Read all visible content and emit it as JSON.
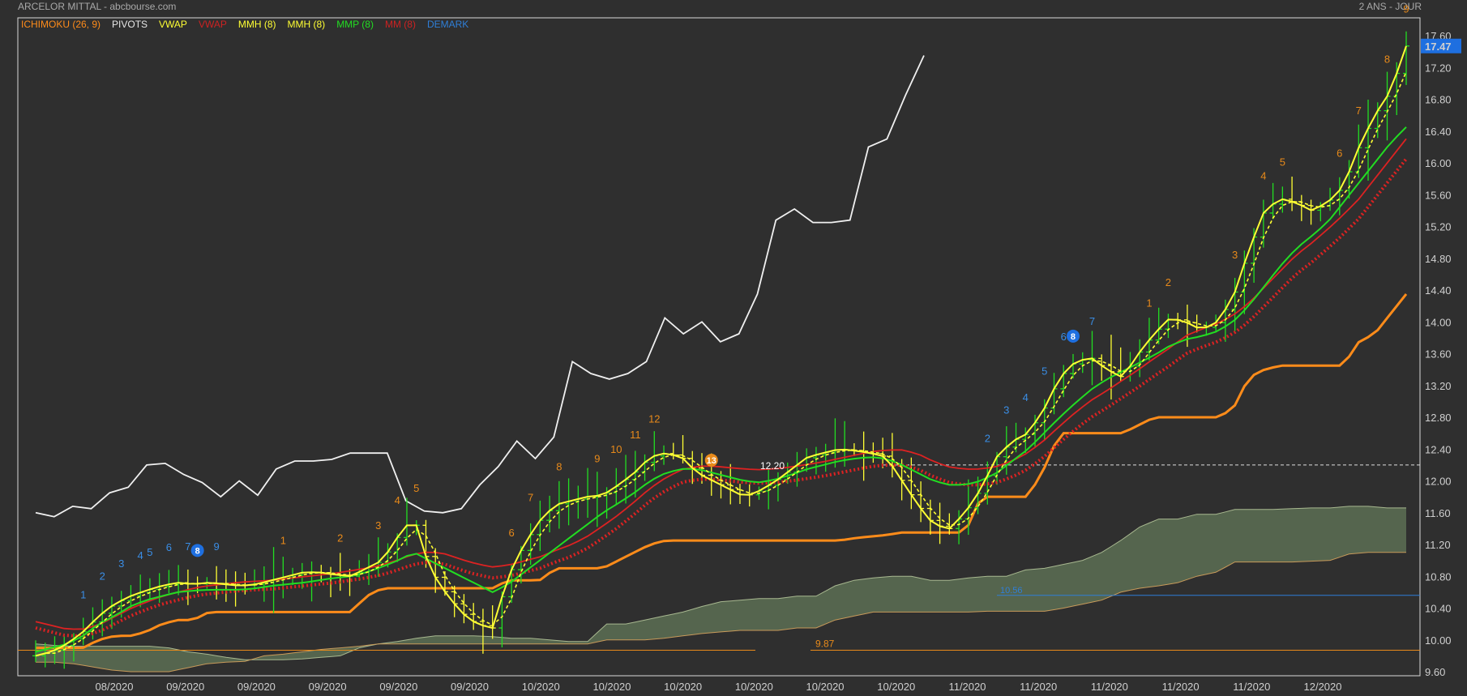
{
  "header": {
    "instrument": "ARCELOR MITTAL - abcbourse.com",
    "period": "2 ANS - JOUR"
  },
  "legend": [
    {
      "label": "ICHIMOKU (26, 9)",
      "color": "#ff8c1a"
    },
    {
      "label": "PIVOTS",
      "color": "#e6e6e6"
    },
    {
      "label": "VWAP",
      "color": "#ffff33"
    },
    {
      "label": "VWAP",
      "color": "#cc2222"
    },
    {
      "label": "MMH (8)",
      "color": "#ffff33"
    },
    {
      "label": "MMH (8)",
      "color": "#ffff33"
    },
    {
      "label": "MMP (8)",
      "color": "#22dd22"
    },
    {
      "label": "MM (8)",
      "color": "#cc2222"
    },
    {
      "label": "DEMARK",
      "color": "#2f7fd8"
    }
  ],
  "chart_data": {
    "type": "line",
    "ylim": [
      9.6,
      17.6
    ],
    "yticks": [
      "9.60",
      "10.00",
      "10.40",
      "10.80",
      "11.20",
      "11.60",
      "12.00",
      "12.40",
      "12.80",
      "13.20",
      "13.60",
      "14.00",
      "14.40",
      "14.80",
      "15.20",
      "15.60",
      "16.00",
      "16.40",
      "16.80",
      "17.20",
      "17.60"
    ],
    "last_price": "17.47",
    "xticks": [
      "08/2020",
      "09/2020",
      "09/2020",
      "09/2020",
      "09/2020",
      "09/2020",
      "10/2020",
      "10/2020",
      "10/2020",
      "10/2020",
      "10/2020",
      "10/2020",
      "11/2020",
      "11/2020",
      "11/2020",
      "11/2020",
      "11/2020",
      "12/2020"
    ],
    "annotations": {
      "price_label": "12.20",
      "low_label": "9.87",
      "blue_line_label": "10.56",
      "badge_a": "8",
      "badge_b": "13",
      "badge_c": "8"
    },
    "closes": [
      9.8,
      9.85,
      9.95,
      10.1,
      10.3,
      10.45,
      10.55,
      10.62,
      10.68,
      10.72,
      10.7,
      10.72,
      10.7,
      10.68,
      10.7,
      10.75,
      10.8,
      10.85,
      10.85,
      10.82,
      10.8,
      10.9,
      11.0,
      11.3,
      11.55,
      10.9,
      10.6,
      10.35,
      10.2,
      10.15,
      10.8,
      11.2,
      11.5,
      11.7,
      11.75,
      11.8,
      11.82,
      11.95,
      12.1,
      12.3,
      12.35,
      12.3,
      12.1,
      12.0,
      11.9,
      11.8,
      11.88,
      12.0,
      12.15,
      12.3,
      12.35,
      12.4,
      12.38,
      12.35,
      12.3,
      12.0,
      11.7,
      11.45,
      11.4,
      11.6,
      11.9,
      12.3,
      12.5,
      12.6,
      12.9,
      13.3,
      13.5,
      13.55,
      13.4,
      13.3,
      13.6,
      13.85,
      14.05,
      14.0,
      13.9,
      14.0,
      14.3,
      14.9,
      15.4,
      15.55,
      15.5,
      15.4,
      15.5,
      15.7,
      16.2,
      16.6,
      16.9,
      17.47
    ],
    "ma": [
      9.85,
      9.9,
      9.95,
      10.05,
      10.2,
      10.3,
      10.42,
      10.5,
      10.55,
      10.6,
      10.62,
      10.63,
      10.63,
      10.63,
      10.65,
      10.68,
      10.7,
      10.72,
      10.75,
      10.78,
      10.8,
      10.85,
      10.92,
      11.0,
      11.1,
      11.0,
      10.9,
      10.8,
      10.7,
      10.6,
      10.7,
      10.85,
      11.0,
      11.15,
      11.3,
      11.45,
      11.6,
      11.72,
      11.85,
      12.0,
      12.1,
      12.15,
      12.15,
      12.1,
      12.05,
      12.0,
      11.98,
      12.02,
      12.08,
      12.15,
      12.2,
      12.25,
      12.28,
      12.3,
      12.28,
      12.2,
      12.1,
      12.0,
      11.95,
      11.95,
      12.0,
      12.1,
      12.25,
      12.4,
      12.6,
      12.8,
      12.98,
      13.15,
      13.28,
      13.38,
      13.48,
      13.58,
      13.7,
      13.78,
      13.82,
      13.88,
      14.0,
      14.2,
      14.45,
      14.7,
      14.92,
      15.08,
      15.25,
      15.5,
      15.75,
      16.0,
      16.25,
      16.45
    ],
    "mm": [
      10.15,
      10.1,
      10.05,
      10.05,
      10.1,
      10.2,
      10.3,
      10.38,
      10.45,
      10.5,
      10.55,
      10.58,
      10.6,
      10.62,
      10.63,
      10.64,
      10.66,
      10.68,
      10.7,
      10.72,
      10.75,
      10.78,
      10.82,
      10.88,
      10.95,
      10.98,
      10.95,
      10.88,
      10.82,
      10.78,
      10.8,
      10.85,
      10.9,
      10.98,
      11.05,
      11.15,
      11.28,
      11.42,
      11.58,
      11.75,
      11.88,
      11.98,
      12.02,
      12.02,
      12.0,
      11.98,
      11.97,
      11.98,
      12.0,
      12.03,
      12.06,
      12.1,
      12.14,
      12.18,
      12.2,
      12.2,
      12.15,
      12.05,
      11.98,
      11.95,
      11.95,
      11.98,
      12.05,
      12.15,
      12.3,
      12.48,
      12.65,
      12.8,
      12.92,
      13.05,
      13.18,
      13.32,
      13.45,
      13.6,
      13.68,
      13.75,
      13.85,
      14.0,
      14.2,
      14.4,
      14.6,
      14.75,
      14.92,
      15.1,
      15.3,
      15.55,
      15.8,
      16.05
    ],
    "kijun": [
      9.9,
      9.9,
      9.9,
      9.9,
      10.0,
      10.05,
      10.05,
      10.1,
      10.2,
      10.25,
      10.25,
      10.35,
      10.35,
      10.35,
      10.35,
      10.35,
      10.35,
      10.35,
      10.35,
      10.35,
      10.35,
      10.55,
      10.65,
      10.65,
      10.65,
      10.65,
      10.65,
      10.65,
      10.65,
      10.65,
      10.75,
      10.75,
      10.75,
      10.9,
      10.9,
      10.9,
      10.9,
      11.0,
      11.1,
      11.2,
      11.25,
      11.25,
      11.25,
      11.25,
      11.25,
      11.25,
      11.25,
      11.25,
      11.25,
      11.25,
      11.25,
      11.25,
      11.28,
      11.3,
      11.32,
      11.35,
      11.35,
      11.35,
      11.35,
      11.35,
      11.8,
      11.8,
      11.8,
      11.8,
      12.15,
      12.6,
      12.6,
      12.6,
      12.6,
      12.6,
      12.7,
      12.8,
      12.8,
      12.8,
      12.8,
      12.8,
      12.9,
      13.3,
      13.4,
      13.45,
      13.45,
      13.45,
      13.45,
      13.45,
      13.75,
      13.85,
      14.1,
      14.35
    ],
    "white_line": [
      11.6,
      11.55,
      11.68,
      11.65,
      11.85,
      11.92,
      12.2,
      12.22,
      12.08,
      11.98,
      11.8,
      12.0,
      11.82,
      12.15,
      12.25,
      12.25,
      12.27,
      12.35,
      12.35,
      12.35,
      11.75,
      11.62,
      11.6,
      11.65,
      11.95,
      12.18,
      12.5,
      12.28,
      12.55,
      13.5,
      13.35,
      13.28,
      13.35,
      13.5,
      14.05,
      13.85,
      14.0,
      13.75,
      13.85,
      14.35,
      15.28,
      15.42,
      15.25,
      15.25,
      15.28,
      16.2,
      16.3,
      16.85,
      17.35
    ],
    "cloud_top": [
      9.95,
      9.93,
      9.92,
      9.92,
      9.92,
      9.92,
      9.92,
      9.9,
      9.85,
      9.82,
      9.78,
      9.75,
      9.75,
      9.75,
      9.76,
      9.78,
      9.8,
      9.9,
      9.95,
      9.98,
      10.02,
      10.05,
      10.05,
      10.05,
      10.04,
      10.02,
      10.02,
      10.0,
      9.98,
      9.98,
      10.2,
      10.2,
      10.25,
      10.3,
      10.35,
      10.42,
      10.48,
      10.5,
      10.52,
      10.52,
      10.55,
      10.55,
      10.68,
      10.75,
      10.78,
      10.8,
      10.8,
      10.75,
      10.75,
      10.78,
      10.8,
      10.8,
      10.88,
      10.9,
      10.95,
      11.0,
      11.1,
      11.25,
      11.42,
      11.52,
      11.52,
      11.58,
      11.58,
      11.64,
      11.64,
      11.64,
      11.65,
      11.66,
      11.66,
      11.68,
      11.68,
      11.66,
      11.66
    ],
    "cloud_bottom": [
      9.72,
      9.72,
      9.7,
      9.66,
      9.62,
      9.6,
      9.6,
      9.6,
      9.65,
      9.7,
      9.72,
      9.73,
      9.8,
      9.82,
      9.85,
      9.88,
      9.9,
      9.92,
      9.95,
      9.95,
      9.95,
      9.95,
      9.95,
      9.95,
      9.95,
      9.95,
      9.95,
      9.95,
      9.95,
      9.95,
      10.0,
      10.0,
      10.0,
      10.02,
      10.05,
      10.08,
      10.1,
      10.12,
      10.12,
      10.12,
      10.15,
      10.15,
      10.25,
      10.3,
      10.35,
      10.35,
      10.35,
      10.35,
      10.35,
      10.35,
      10.36,
      10.36,
      10.36,
      10.36,
      10.4,
      10.45,
      10.5,
      10.6,
      10.65,
      10.68,
      10.72,
      10.8,
      10.85,
      10.98,
      10.98,
      10.98,
      10.98,
      10.99,
      11.0,
      11.08,
      11.1,
      11.1,
      11.1
    ],
    "demark_counts": [
      {
        "i": 5,
        "label": "1",
        "color": "#3a8ee6"
      },
      {
        "i": 7,
        "label": "2",
        "color": "#3a8ee6"
      },
      {
        "i": 9,
        "label": "3",
        "color": "#3a8ee6"
      },
      {
        "i": 11,
        "label": "4",
        "color": "#3a8ee6"
      },
      {
        "i": 12,
        "label": "5",
        "color": "#3a8ee6"
      },
      {
        "i": 14,
        "label": "6",
        "color": "#3a8ee6"
      },
      {
        "i": 16,
        "label": "7",
        "color": "#3a8ee6"
      },
      {
        "i": 19,
        "label": "9",
        "color": "#3a8ee6"
      },
      {
        "i": 26,
        "label": "1",
        "color": "#e88a1a"
      },
      {
        "i": 32,
        "label": "2",
        "color": "#e88a1a"
      },
      {
        "i": 36,
        "label": "3",
        "color": "#e88a1a"
      },
      {
        "i": 38,
        "label": "4",
        "color": "#e88a1a"
      },
      {
        "i": 40,
        "label": "5",
        "color": "#e88a1a"
      },
      {
        "i": 50,
        "label": "6",
        "color": "#e88a1a"
      },
      {
        "i": 52,
        "label": "7",
        "color": "#e88a1a"
      },
      {
        "i": 55,
        "label": "8",
        "color": "#e88a1a"
      },
      {
        "i": 59,
        "label": "9",
        "color": "#e88a1a"
      },
      {
        "i": 61,
        "label": "10",
        "color": "#e88a1a"
      },
      {
        "i": 63,
        "label": "11",
        "color": "#e88a1a"
      },
      {
        "i": 65,
        "label": "12",
        "color": "#e88a1a"
      },
      {
        "i": 100,
        "label": "2",
        "color": "#3a8ee6"
      },
      {
        "i": 102,
        "label": "3",
        "color": "#3a8ee6"
      },
      {
        "i": 104,
        "label": "4",
        "color": "#3a8ee6"
      },
      {
        "i": 106,
        "label": "5",
        "color": "#3a8ee6"
      },
      {
        "i": 108,
        "label": "6",
        "color": "#3a8ee6"
      },
      {
        "i": 111,
        "label": "7",
        "color": "#3a8ee6"
      },
      {
        "i": 117,
        "label": "1",
        "color": "#e88a1a"
      },
      {
        "i": 119,
        "label": "2",
        "color": "#e88a1a"
      },
      {
        "i": 126,
        "label": "3",
        "color": "#e88a1a"
      },
      {
        "i": 129,
        "label": "4",
        "color": "#e88a1a"
      },
      {
        "i": 131,
        "label": "5",
        "color": "#e88a1a"
      },
      {
        "i": 137,
        "label": "6",
        "color": "#e88a1a"
      },
      {
        "i": 139,
        "label": "7",
        "color": "#e88a1a"
      },
      {
        "i": 142,
        "label": "8",
        "color": "#e88a1a"
      },
      {
        "i": 144,
        "label": "9",
        "color": "#e88a1a"
      }
    ]
  }
}
